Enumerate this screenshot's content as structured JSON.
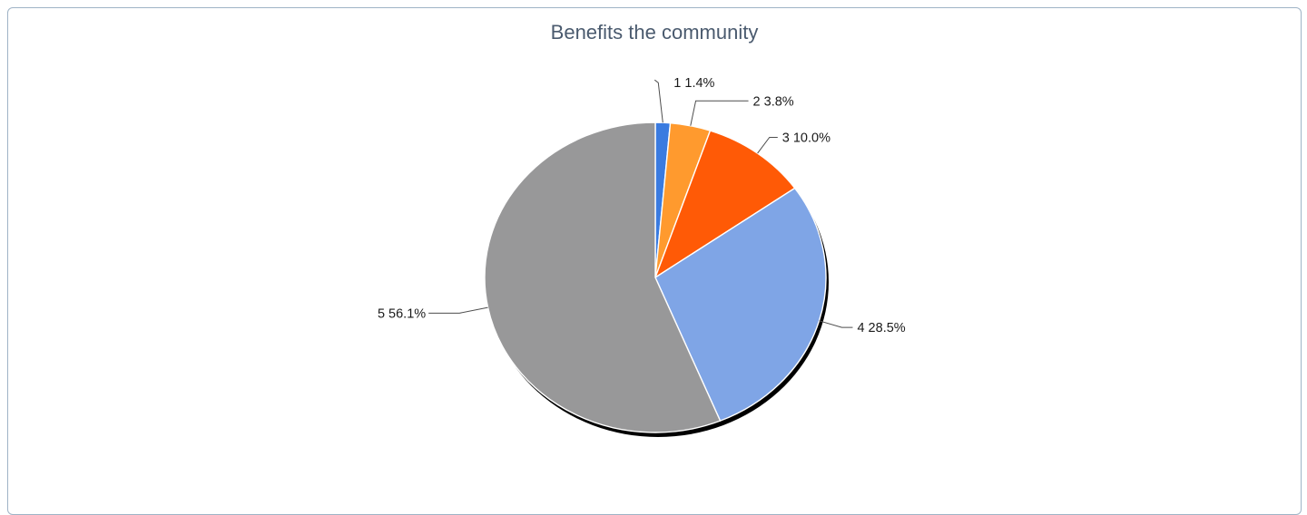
{
  "chart_data": {
    "type": "pie",
    "title": "Benefits the community",
    "slices": [
      {
        "label": "1",
        "value": 1.4,
        "display": "1.4%",
        "color": "#3a7be0"
      },
      {
        "label": "2",
        "value": 3.8,
        "display": "3.8%",
        "color": "#ff9a2e"
      },
      {
        "label": "3",
        "value": 10.0,
        "display": "10.0%",
        "color": "#ff5a06"
      },
      {
        "label": "4",
        "value": 28.5,
        "display": "28.5%",
        "color": "#7fa5e6"
      },
      {
        "label": "5",
        "value": 56.1,
        "display": "56.1%",
        "color": "#989899"
      }
    ],
    "start_angle": "12 o'clock",
    "direction": "clockwise",
    "legend": "none"
  }
}
